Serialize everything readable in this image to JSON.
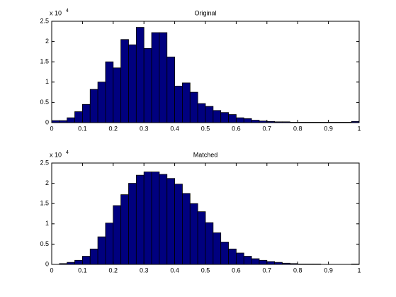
{
  "chart_data": [
    {
      "type": "histogram",
      "title": "Original",
      "y_scale_label": "x 10",
      "y_scale_exponent": "4",
      "bins": [
        0,
        0.025,
        0.05,
        0.075,
        0.1,
        0.125,
        0.15,
        0.175,
        0.2,
        0.225,
        0.25,
        0.275,
        0.3,
        0.325,
        0.35,
        0.375,
        0.4,
        0.425,
        0.45,
        0.475,
        0.5,
        0.525,
        0.55,
        0.575,
        0.6,
        0.625,
        0.65,
        0.675,
        0.7,
        0.725,
        0.75,
        0.775,
        0.8,
        0.825,
        0.85,
        0.875,
        0.9,
        0.925,
        0.95,
        0.975,
        1
      ],
      "values": [
        0.05,
        0.05,
        0.12,
        0.27,
        0.45,
        0.82,
        1.0,
        1.5,
        1.35,
        2.05,
        1.92,
        2.35,
        1.83,
        2.22,
        2.22,
        1.62,
        0.9,
        0.98,
        0.75,
        0.47,
        0.4,
        0.3,
        0.25,
        0.2,
        0.12,
        0.1,
        0.06,
        0.04,
        0.03,
        0.02,
        0.02,
        0.01,
        0.01,
        0.01,
        0.01,
        0.01,
        0.01,
        0.01,
        0.01,
        0.03
      ],
      "color": "#00007f",
      "xlim": [
        0,
        1
      ],
      "xticks": [
        0,
        0.1,
        0.2,
        0.3,
        0.4,
        0.5,
        0.6,
        0.7,
        0.8,
        0.9,
        1
      ],
      "ylim": [
        0,
        2.5
      ],
      "yticks": [
        0,
        0.5,
        1,
        1.5,
        2,
        2.5
      ]
    },
    {
      "type": "histogram",
      "title": "Matched",
      "y_scale_label": "x 10",
      "y_scale_exponent": "4",
      "bins": [
        0,
        0.025,
        0.05,
        0.075,
        0.1,
        0.125,
        0.15,
        0.175,
        0.2,
        0.225,
        0.25,
        0.275,
        0.3,
        0.325,
        0.35,
        0.375,
        0.4,
        0.425,
        0.45,
        0.475,
        0.5,
        0.525,
        0.55,
        0.575,
        0.6,
        0.625,
        0.65,
        0.675,
        0.7,
        0.725,
        0.75,
        0.775,
        0.8,
        0.825,
        0.85,
        0.875,
        0.9,
        0.925,
        0.95,
        0.975,
        1
      ],
      "values": [
        0,
        0.02,
        0.05,
        0.1,
        0.2,
        0.38,
        0.68,
        1.02,
        1.45,
        1.72,
        2.0,
        2.2,
        2.28,
        2.28,
        2.22,
        2.12,
        1.98,
        1.75,
        1.5,
        1.3,
        1.03,
        0.78,
        0.55,
        0.38,
        0.28,
        0.2,
        0.14,
        0.1,
        0.07,
        0.05,
        0.03,
        0.02,
        0.01,
        0.01,
        0.01,
        0,
        0,
        0,
        0,
        0.01
      ],
      "color": "#00007f",
      "xlim": [
        0,
        1
      ],
      "xticks": [
        0,
        0.1,
        0.2,
        0.3,
        0.4,
        0.5,
        0.6,
        0.7,
        0.8,
        0.9,
        1
      ],
      "ylim": [
        0,
        2.5
      ],
      "yticks": [
        0,
        0.5,
        1,
        1.5,
        2,
        2.5
      ]
    }
  ]
}
